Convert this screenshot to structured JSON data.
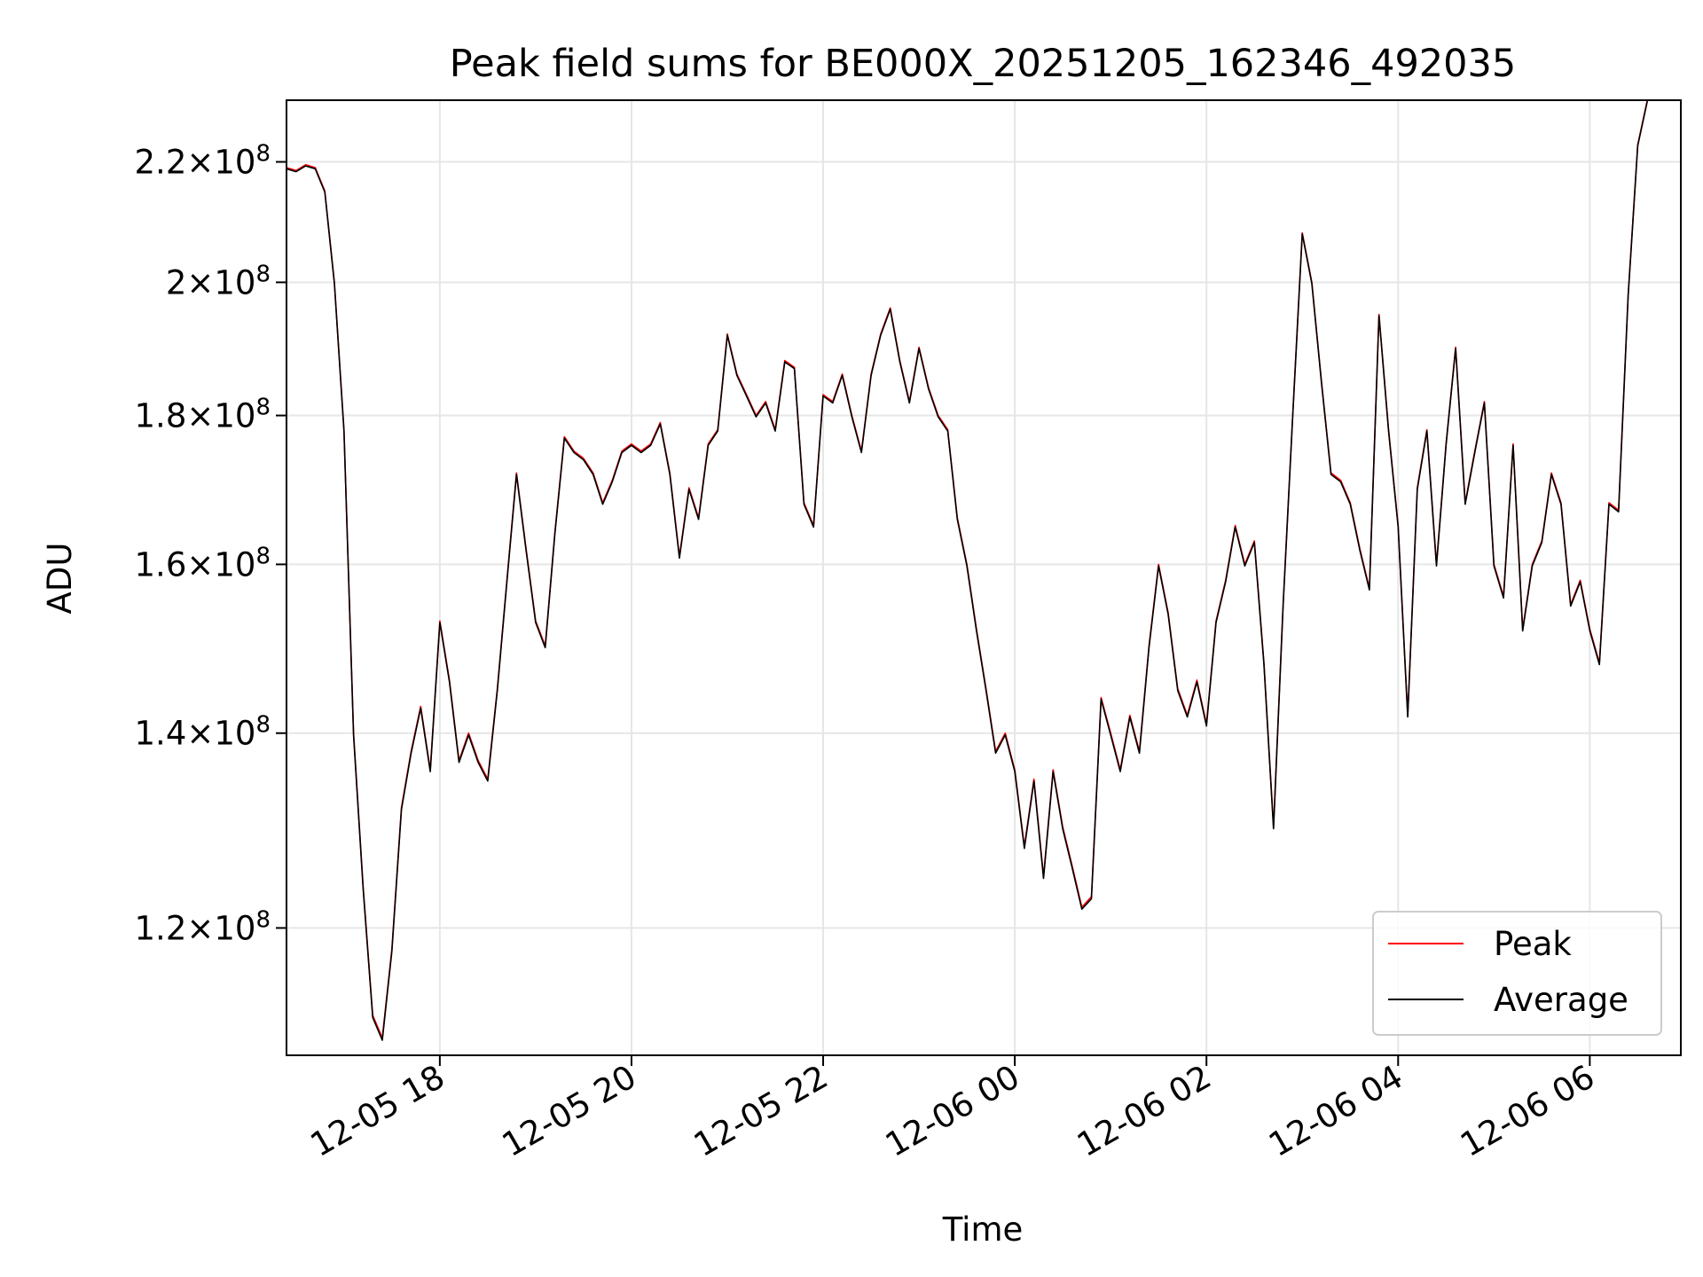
{
  "chart_data": {
    "type": "line",
    "title": "Peak field sums for BE000X_20251205_162346_492035",
    "xlabel": "Time",
    "ylabel": "ADU",
    "yscale": "log",
    "grid": true,
    "legend_position": "lower-right",
    "xlim_hours": [
      16.4,
      30.95
    ],
    "ylim": [
      108500000,
      231000000
    ],
    "x_ticks": [
      {
        "hours": 18,
        "label": "12-05 18"
      },
      {
        "hours": 20,
        "label": "12-05 20"
      },
      {
        "hours": 22,
        "label": "12-05 22"
      },
      {
        "hours": 24,
        "label": "12-06 00"
      },
      {
        "hours": 26,
        "label": "12-06 02"
      },
      {
        "hours": 28,
        "label": "12-06 04"
      },
      {
        "hours": 30,
        "label": "12-06 06"
      }
    ],
    "y_ticks": [
      {
        "value": 120000000,
        "mantissa": "1.2",
        "exp": "8"
      },
      {
        "value": 140000000,
        "mantissa": "1.4",
        "exp": "8"
      },
      {
        "value": 160000000,
        "mantissa": "1.6",
        "exp": "8"
      },
      {
        "value": 180000000,
        "mantissa": "1.8",
        "exp": "8"
      },
      {
        "value": 200000000,
        "mantissa": "2",
        "exp": "8"
      },
      {
        "value": 220000000,
        "mantissa": "2.2",
        "exp": "8"
      }
    ],
    "x_hours": [
      16.4,
      16.5,
      16.6,
      16.7,
      16.8,
      16.9,
      17.0,
      17.1,
      17.2,
      17.3,
      17.4,
      17.5,
      17.6,
      17.7,
      17.8,
      17.9,
      18.0,
      18.1,
      18.2,
      18.3,
      18.4,
      18.5,
      18.6,
      18.7,
      18.8,
      18.9,
      19.0,
      19.1,
      19.2,
      19.3,
      19.4,
      19.5,
      19.6,
      19.7,
      19.8,
      19.9,
      20.0,
      20.1,
      20.2,
      20.3,
      20.4,
      20.5,
      20.6,
      20.7,
      20.8,
      20.9,
      21.0,
      21.1,
      21.2,
      21.3,
      21.4,
      21.5,
      21.6,
      21.7,
      21.8,
      21.9,
      22.0,
      22.1,
      22.2,
      22.3,
      22.4,
      22.5,
      22.6,
      22.7,
      22.8,
      22.9,
      23.0,
      23.1,
      23.2,
      23.3,
      23.4,
      23.5,
      23.6,
      23.7,
      23.8,
      23.9,
      24.0,
      24.1,
      24.2,
      24.3,
      24.4,
      24.5,
      24.6,
      24.7,
      24.8,
      24.9,
      25.0,
      25.1,
      25.2,
      25.3,
      25.4,
      25.5,
      25.6,
      25.7,
      25.8,
      25.9,
      26.0,
      26.1,
      26.2,
      26.3,
      26.4,
      26.5,
      26.6,
      26.7,
      26.8,
      26.9,
      27.0,
      27.1,
      27.2,
      27.3,
      27.4,
      27.5,
      27.6,
      27.7,
      27.8,
      27.9,
      28.0,
      28.1,
      28.2,
      28.3,
      28.4,
      28.5,
      28.6,
      28.7,
      28.8,
      28.9,
      29.0,
      29.1,
      29.2,
      29.3,
      29.4,
      29.5,
      29.6,
      29.7,
      29.8,
      29.9,
      30.0,
      30.1,
      30.2,
      30.3,
      30.4,
      30.5,
      30.6,
      30.7,
      30.8,
      30.95
    ],
    "series": [
      {
        "name": "Peak",
        "color": "#ff0000",
        "values": [
          219000000,
          218500000,
          219500000,
          219000000,
          215000000,
          200000000,
          178000000,
          140000000,
          124000000,
          112000000,
          110000000,
          118000000,
          132000000,
          138000000,
          143000000,
          136000000,
          153000000,
          146000000,
          137000000,
          140000000,
          137000000,
          135000000,
          145000000,
          158000000,
          172000000,
          162000000,
          153000000,
          150000000,
          164000000,
          177000000,
          175000000,
          174000000,
          172000000,
          168000000,
          171000000,
          175000000,
          176000000,
          175000000,
          176000000,
          179000000,
          172000000,
          161000000,
          170000000,
          166000000,
          176000000,
          178000000,
          192000000,
          186000000,
          183000000,
          180000000,
          182000000,
          178000000,
          188000000,
          187000000,
          168000000,
          165000000,
          183000000,
          182000000,
          186000000,
          180000000,
          175000000,
          186000000,
          192000000,
          196000000,
          188000000,
          182000000,
          190000000,
          184000000,
          180000000,
          178000000,
          166000000,
          160000000,
          152000000,
          145000000,
          138000000,
          140000000,
          136000000,
          128000000,
          135000000,
          125000000,
          136000000,
          130000000,
          126000000,
          122000000,
          123000000,
          144000000,
          140000000,
          136000000,
          142000000,
          138000000,
          150000000,
          160000000,
          154000000,
          145000000,
          142000000,
          146000000,
          141000000,
          153000000,
          158000000,
          165000000,
          160000000,
          163000000,
          148000000,
          130000000,
          155000000,
          180000000,
          208000000,
          200000000,
          185000000,
          172000000,
          171000000,
          168000000,
          162000000,
          157000000,
          195000000,
          178000000,
          165000000,
          142000000,
          170000000,
          178000000,
          160000000,
          176000000,
          190000000,
          168000000,
          175000000,
          182000000,
          160000000,
          156000000,
          176000000,
          152000000,
          160000000,
          163000000,
          172000000,
          168000000,
          155000000,
          158000000,
          152000000,
          148000000,
          168000000,
          167000000,
          198000000,
          223000000,
          231000000
        ]
      },
      {
        "name": "Average",
        "color": "#000000",
        "values": [
          218800000,
          218300000,
          219300000,
          218800000,
          214800000,
          199800000,
          177800000,
          139800000,
          123800000,
          111800000,
          109800000,
          117800000,
          131800000,
          137800000,
          142800000,
          135800000,
          152800000,
          145800000,
          136800000,
          139800000,
          136800000,
          134800000,
          144800000,
          157800000,
          171800000,
          161800000,
          152800000,
          149800000,
          163800000,
          176800000,
          174800000,
          173800000,
          171800000,
          167800000,
          170800000,
          174800000,
          175800000,
          174800000,
          175800000,
          178800000,
          171800000,
          160800000,
          169800000,
          165800000,
          175800000,
          177800000,
          191800000,
          185800000,
          182800000,
          179800000,
          181800000,
          177800000,
          187800000,
          186800000,
          167800000,
          164800000,
          182800000,
          181800000,
          185800000,
          179800000,
          174800000,
          185800000,
          191800000,
          195800000,
          187800000,
          181800000,
          189800000,
          183800000,
          179800000,
          177800000,
          165800000,
          159800000,
          151800000,
          144800000,
          137800000,
          139800000,
          135800000,
          127800000,
          134800000,
          124800000,
          135800000,
          129800000,
          125800000,
          121800000,
          122800000,
          143800000,
          139800000,
          135800000,
          141800000,
          137800000,
          149800000,
          159800000,
          153800000,
          144800000,
          141800000,
          145800000,
          140800000,
          152800000,
          157800000,
          164800000,
          159800000,
          162800000,
          147800000,
          129800000,
          154800000,
          179800000,
          207800000,
          199800000,
          184800000,
          171800000,
          170800000,
          167800000,
          161800000,
          156800000,
          194800000,
          177800000,
          164800000,
          141800000,
          169800000,
          177800000,
          159800000,
          175800000,
          189800000,
          167800000,
          174800000,
          181800000,
          159800000,
          155800000,
          175800000,
          151800000,
          159800000,
          162800000,
          171800000,
          167800000,
          154800000,
          157800000,
          151800000,
          147800000,
          167800000,
          166800000,
          197800000,
          222800000,
          230800000
        ]
      }
    ]
  }
}
